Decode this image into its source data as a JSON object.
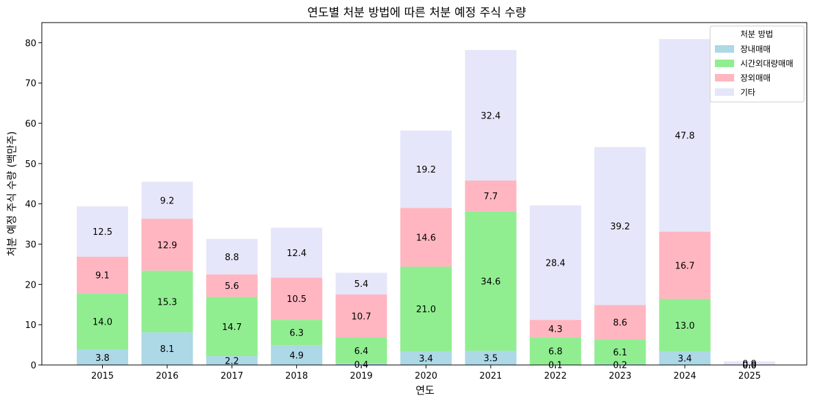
{
  "chart_data": {
    "type": "bar",
    "stacked": true,
    "title": "연도별 처분 방법에 따른 처분 예정 주식 수량",
    "xlabel": "연도",
    "ylabel": "처분 예정 주식 수량 (백만주)",
    "ylim": [
      0,
      85
    ],
    "yticks": [
      0,
      10,
      20,
      30,
      40,
      50,
      60,
      70,
      80
    ],
    "grid": false,
    "legend": {
      "title": "처분 방법",
      "position": "top-right"
    },
    "categories": [
      "2015",
      "2016",
      "2017",
      "2018",
      "2019",
      "2020",
      "2021",
      "2022",
      "2023",
      "2024",
      "2025"
    ],
    "series": [
      {
        "name": "장내매매",
        "color": "#add8e6",
        "values": [
          3.8,
          8.1,
          2.2,
          4.9,
          0.4,
          3.4,
          3.5,
          0.1,
          0.2,
          3.4,
          0.0
        ]
      },
      {
        "name": "시간외대량매매",
        "color": "#90ee90",
        "values": [
          14.0,
          15.3,
          14.7,
          6.3,
          6.4,
          21.0,
          34.6,
          6.8,
          6.1,
          13.0,
          0.0
        ]
      },
      {
        "name": "장외매매",
        "color": "#ffb6c1",
        "values": [
          9.1,
          12.9,
          5.6,
          10.5,
          10.7,
          14.6,
          7.7,
          4.3,
          8.6,
          16.7,
          0.0
        ]
      },
      {
        "name": "기타",
        "color": "#e6e6fa",
        "values": [
          12.5,
          9.2,
          8.8,
          12.4,
          5.4,
          19.2,
          32.4,
          28.4,
          39.2,
          47.8,
          0.9
        ]
      }
    ]
  }
}
